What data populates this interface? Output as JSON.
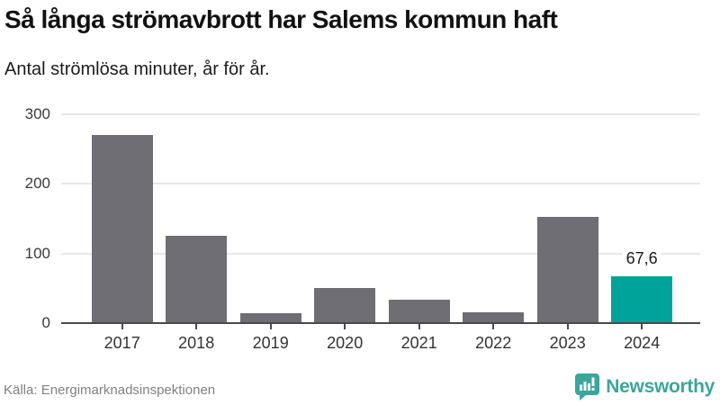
{
  "chart_data": {
    "type": "bar",
    "title": "Så långa strömavbrott har Salems kommun haft",
    "subtitle": "Antal strömlösa minuter, år för år.",
    "categories": [
      "2017",
      "2018",
      "2019",
      "2020",
      "2021",
      "2022",
      "2023",
      "2024"
    ],
    "values": [
      270,
      126,
      14,
      51,
      33,
      15,
      152,
      67.6
    ],
    "ylim": [
      0,
      300
    ],
    "yticks": [
      0,
      100,
      200,
      300
    ],
    "ytick_labels": [
      "0",
      "100",
      "200",
      "300"
    ],
    "grid": "horizontal-light",
    "legend": "none",
    "bar_color": "#6e6e74",
    "highlight": {
      "index": 7,
      "value_label": "67,6",
      "color": "#00a399"
    }
  },
  "footer": {
    "source": "Källa: Energimarknadsinspektionen",
    "brand": "Newsworthy"
  },
  "colors": {
    "axis": "#4a4a4a",
    "gridline": "#e7e7e7",
    "tick_text": "#3a3a3a",
    "brand_teal": "#3ba69c"
  }
}
